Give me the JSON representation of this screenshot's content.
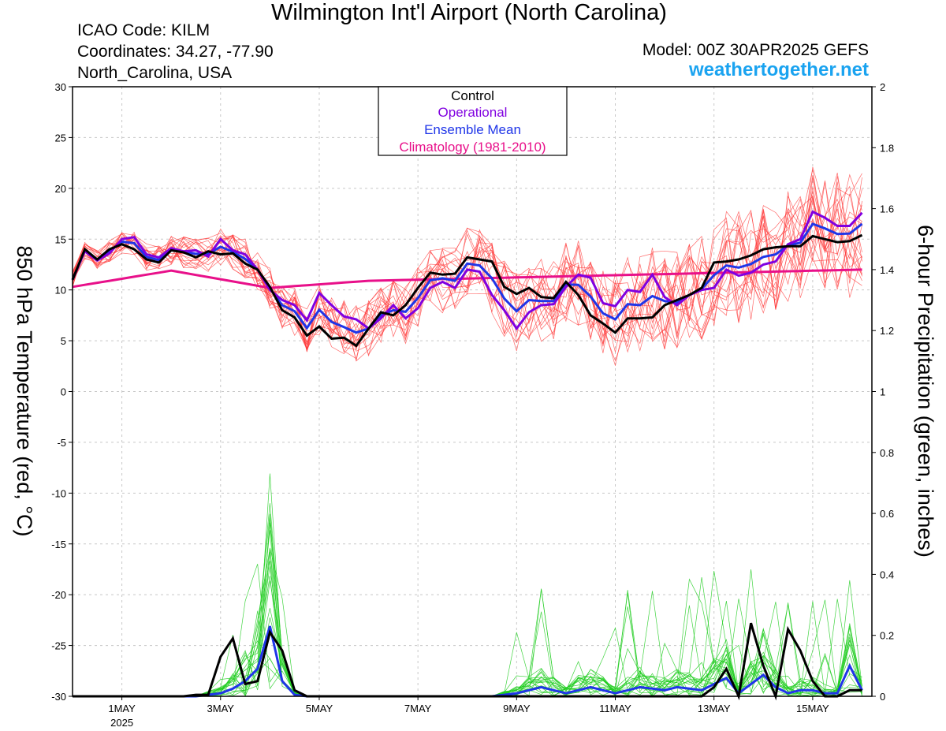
{
  "header": {
    "title": "Wilmington Int'l Airport (North Carolina)",
    "icao": "ICAO Code: KILM",
    "coordinates": "Coordinates: 34.27, -77.90",
    "location": "North_Carolina, USA",
    "model": "Model: 00Z 30APR2025 GEFS",
    "site": "weathertogether.net"
  },
  "chart_data": {
    "type": "line",
    "title": "Wilmington Int'l Airport (North Carolina)",
    "ylabel_left": "850 hPa Temperature (red, °C)",
    "ylabel_right": "6-hour Precipitation (green, inches)",
    "ylim_left": [
      -30,
      30
    ],
    "ylim_right": [
      0,
      2
    ],
    "x_unit": "days after 00Z 30APR2025",
    "xlim": [
      0,
      16.2
    ],
    "yticks_left": [
      30,
      25,
      20,
      15,
      10,
      5,
      0,
      -5,
      -10,
      -15,
      -20,
      -25,
      -30
    ],
    "yticks_right": [
      "2",
      "1.8",
      "1.6",
      "1.4",
      "1.2",
      "1",
      "0.8",
      "0.6",
      "0.4",
      "0.2",
      "0"
    ],
    "xticks": [
      {
        "x": 1,
        "label": "1MAY",
        "sub": "2025"
      },
      {
        "x": 3,
        "label": "3MAY"
      },
      {
        "x": 5,
        "label": "5MAY"
      },
      {
        "x": 7,
        "label": "7MAY"
      },
      {
        "x": 9,
        "label": "9MAY"
      },
      {
        "x": 11,
        "label": "11MAY"
      },
      {
        "x": 13,
        "label": "13MAY"
      },
      {
        "x": 15,
        "label": "15MAY"
      }
    ],
    "legend": {
      "placement": "top-center",
      "entries": [
        {
          "name": "Control",
          "color": "#000000"
        },
        {
          "name": "Operational",
          "color": "#8000e0"
        },
        {
          "name": "Ensemble Mean",
          "color": "#1f35e8"
        },
        {
          "name": "Climatology (1981-2010)",
          "color": "#e8108a"
        }
      ]
    },
    "colors": {
      "control": "#000000",
      "operational": "#8000e0",
      "ensemble_mean": "#1f35e8",
      "climatology": "#e8108a",
      "members_temp": "#ff3a3a",
      "members_precip": "#20cc20"
    },
    "grid": true,
    "x": [
      0,
      0.25,
      0.5,
      0.75,
      1,
      1.25,
      1.5,
      1.75,
      2,
      2.25,
      2.5,
      2.75,
      3,
      3.25,
      3.5,
      3.75,
      4,
      4.25,
      4.5,
      4.75,
      5,
      5.25,
      5.5,
      5.75,
      6,
      6.25,
      6.5,
      6.75,
      7,
      7.25,
      7.5,
      7.75,
      8,
      8.25,
      8.5,
      8.75,
      9,
      9.25,
      9.5,
      9.75,
      10,
      10.25,
      10.5,
      10.75,
      11,
      11.25,
      11.5,
      11.75,
      12,
      12.25,
      12.5,
      12.75,
      13,
      13.25,
      13.5,
      13.75,
      14,
      14.25,
      14.5,
      14.75,
      15,
      15.25,
      15.5,
      15.75,
      16
    ],
    "temperature": {
      "control": [
        11,
        14,
        13,
        14,
        14.5,
        14,
        13,
        12.7,
        13.9,
        13.7,
        13.2,
        13.8,
        13.5,
        13.6,
        12.6,
        12,
        10.3,
        8,
        7.3,
        5.5,
        6.4,
        5.2,
        5.3,
        4.5,
        6.2,
        7.8,
        7.5,
        8.5,
        10.2,
        11.7,
        11.5,
        11.6,
        13.2,
        13,
        12.8,
        10.3,
        9.6,
        10.2,
        9.3,
        9.2,
        10.8,
        9.5,
        7.5,
        6.7,
        5.8,
        7.2,
        7.2,
        7.3,
        8.5,
        9,
        9.5,
        10.2,
        12.7,
        12.8,
        13,
        13.4,
        14,
        14.2,
        14.3,
        14.3,
        15.3,
        15,
        14.7,
        14.8,
        15.4
      ],
      "operational": [
        11,
        13.8,
        12.9,
        13.6,
        15,
        15.2,
        13.5,
        13.2,
        14.1,
        13.8,
        13.9,
        13.3,
        15,
        13.9,
        13.5,
        12,
        10,
        9,
        8.5,
        7,
        9.7,
        8.5,
        7.4,
        7.1,
        6.2,
        7.2,
        8.5,
        7.2,
        8.2,
        10.2,
        10.8,
        10.2,
        12,
        11.8,
        9.5,
        8,
        6.2,
        7.8,
        8.5,
        8.6,
        10.3,
        11.5,
        11.2,
        8.7,
        8.4,
        10,
        9.8,
        11.5,
        9.3,
        8.5,
        9.5,
        10,
        10.2,
        12,
        11.4,
        11.7,
        12.5,
        12.8,
        14.5,
        15,
        17.7,
        17.1,
        16.3,
        16.3,
        17.6
      ]
    },
    "precip_in": {
      "control": [
        0,
        0,
        0,
        0,
        0,
        0,
        0,
        0,
        0,
        0,
        0.005,
        0.005,
        0.13,
        0.19,
        0.04,
        0.05,
        0.21,
        0.15,
        0.02,
        0,
        0,
        0,
        0,
        0,
        0,
        0,
        0,
        0,
        0,
        0,
        0,
        0,
        0,
        0,
        0,
        0,
        0,
        0,
        0,
        0,
        0,
        0,
        0,
        0,
        0,
        0,
        0,
        0,
        0,
        0,
        0,
        0,
        0.03,
        0.09,
        0,
        0.24,
        0.1,
        0,
        0.22,
        0.15,
        0.05,
        0,
        0,
        0.02,
        0.02
      ],
      "ensemble_mean": [
        0,
        0,
        0,
        0,
        0,
        0,
        0,
        0,
        0,
        0,
        0,
        0.005,
        0.01,
        0.025,
        0.05,
        0.09,
        0.23,
        0.05,
        0.005,
        0,
        0,
        0,
        0,
        0,
        0,
        0,
        0,
        0,
        0,
        0,
        0,
        0,
        0,
        0,
        0,
        0.005,
        0.01,
        0.02,
        0.03,
        0.02,
        0.01,
        0.02,
        0.03,
        0.02,
        0.01,
        0.02,
        0.03,
        0.025,
        0.02,
        0.03,
        0.025,
        0.02,
        0.04,
        0.06,
        0.01,
        0.04,
        0.07,
        0.03,
        0.01,
        0.02,
        0.02,
        0.01,
        0.01,
        0.1,
        0.02
      ]
    }
  }
}
